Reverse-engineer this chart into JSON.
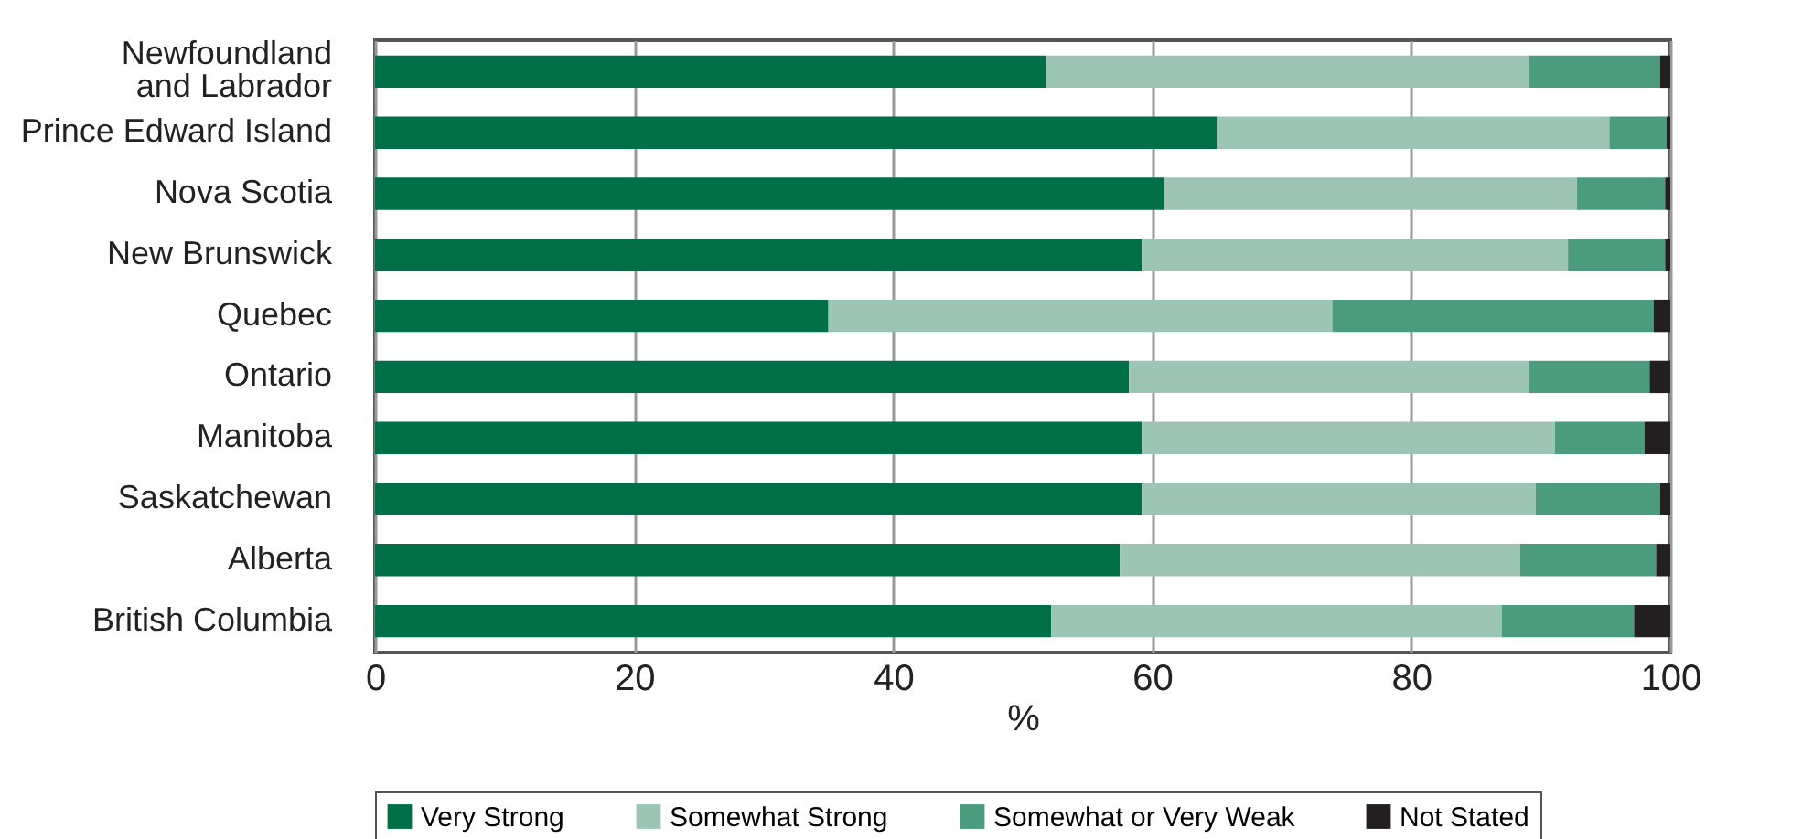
{
  "chart_data": {
    "type": "bar",
    "orientation": "horizontal",
    "stacked": true,
    "xlabel": "%",
    "categories": [
      "Newfoundland and Labrador",
      "Prince Edward Island",
      "Nova Scotia",
      "New Brunswick",
      "Quebec",
      "Ontario",
      "Manitoba",
      "Saskatchewan",
      "Alberta",
      "British Columbia"
    ],
    "series": [
      {
        "name": "Very Strong",
        "color": "#006f47",
        "values": [
          51.8,
          65.0,
          60.9,
          59.2,
          35.0,
          58.2,
          59.2,
          59.2,
          57.5,
          52.2
        ]
      },
      {
        "name": "Somewhat Strong",
        "color": "#9dc5b6",
        "values": [
          37.3,
          30.3,
          31.9,
          32.9,
          38.9,
          30.9,
          31.9,
          30.4,
          30.9,
          34.8
        ]
      },
      {
        "name": "Somewhat or Very Weak",
        "color": "#4b9b7e",
        "values": [
          10.1,
          4.4,
          6.8,
          7.5,
          24.8,
          9.3,
          6.9,
          9.6,
          10.5,
          10.2
        ]
      },
      {
        "name": "Not Stated",
        "color": "#231f20",
        "values": [
          0.8,
          0.3,
          0.4,
          0.4,
          1.3,
          1.6,
          2.0,
          0.8,
          1.1,
          2.8
        ]
      }
    ],
    "xlim": [
      0,
      100
    ],
    "xticks": [
      0,
      20,
      40,
      60,
      80,
      100
    ],
    "grid": "x",
    "legend": "bottom"
  }
}
